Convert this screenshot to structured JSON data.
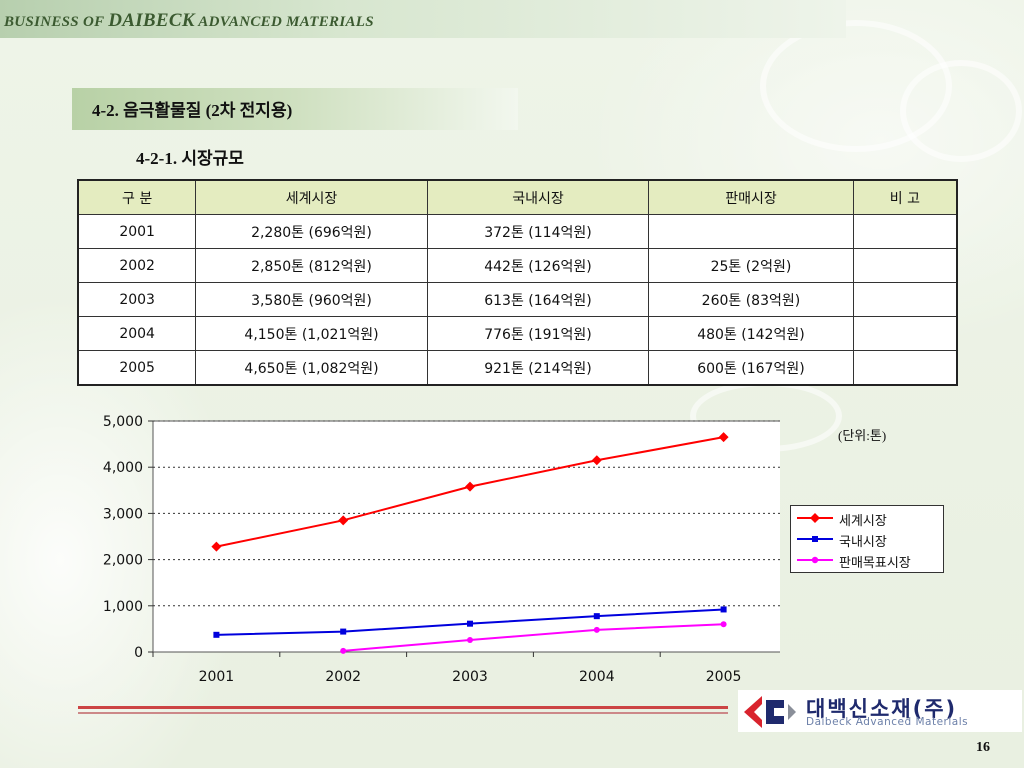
{
  "header": {
    "brand_prefix": "BUSINESS OF ",
    "brand_name": "DAIBECK",
    "brand_suffix": " ADVANCED MATERIALS"
  },
  "section": {
    "title": "4-2. 음극활물질 (2차 전지용)",
    "subtitle": "4-2-1. 시장규모"
  },
  "table": {
    "headers": [
      "구 분",
      "세계시장",
      "국내시장",
      "판매시장",
      "비 고"
    ],
    "rows": [
      [
        "2001",
        "2,280톤 (696억원)",
        "372톤 (114억원)",
        "",
        ""
      ],
      [
        "2002",
        "2,850톤 (812억원)",
        "442톤 (126억원)",
        "25톤 (2억원)",
        ""
      ],
      [
        "2003",
        "3,580톤 (960억원)",
        "613톤 (164억원)",
        "260톤 (83억원)",
        ""
      ],
      [
        "2004",
        "4,150톤 (1,021억원)",
        "776톤 (191억원)",
        "480톤 (142억원)",
        ""
      ],
      [
        "2005",
        "4,650톤 (1,082억원)",
        "921톤 (214억원)",
        "600톤 (167억원)",
        ""
      ]
    ]
  },
  "chart_data": {
    "type": "line",
    "unit_label": "(단위:톤)",
    "categories": [
      "2001",
      "2002",
      "2003",
      "2004",
      "2005"
    ],
    "y_ticks": [
      "0",
      "1,000",
      "2,000",
      "3,000",
      "4,000",
      "5,000"
    ],
    "ylim": [
      0,
      5000
    ],
    "grid": "horizontal-dotted",
    "legend_position": "right",
    "series": [
      {
        "name": "세계시장",
        "values": [
          2280,
          2850,
          3580,
          4150,
          4650
        ],
        "color": "#ff0000",
        "marker": "diamond"
      },
      {
        "name": "국내시장",
        "values": [
          372,
          442,
          613,
          776,
          921
        ],
        "color": "#0000dd",
        "marker": "square"
      },
      {
        "name": "판매목표시장",
        "values": [
          null,
          25,
          260,
          480,
          600
        ],
        "color": "#ff00ff",
        "marker": "circle"
      }
    ]
  },
  "logo": {
    "name_ko": "대백신소재(주)",
    "name_en": "Daibeck Advanced Materials",
    "colors": {
      "red": "#d9232d",
      "blue": "#1f2a6d",
      "gray": "#8a8f99"
    }
  },
  "page_number": "16"
}
